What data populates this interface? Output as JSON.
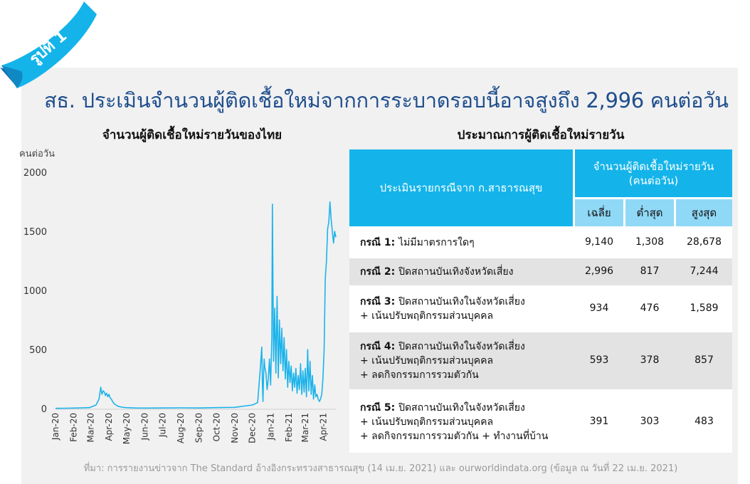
{
  "badge": {
    "label": "รูปที่ 1"
  },
  "header": {
    "title": "สธ. ประเมินจำนวนผู้ติดเชื้อใหม่จากการระบาดรอบนี้อาจสูงถึง 2,996 คนต่อวัน"
  },
  "colors": {
    "title": "#1f4e8c",
    "accent": "#14b4ea",
    "line": "#1cb3ea",
    "ribbon_dark": "#0d6aa8"
  },
  "chart_data": {
    "type": "line",
    "title": "จำนวนผู้ติดเชื้อใหม่รายวันของไทย",
    "ylabel": "คนต่อวัน",
    "ylim": [
      0,
      2000
    ],
    "yticks": [
      0,
      500,
      1000,
      1500,
      2000
    ],
    "xlabels": [
      "Jan-20",
      "Feb-20",
      "Mar-20",
      "Apr-20",
      "May-20",
      "Jun-20",
      "Jul-20",
      "Aug-20",
      "Sep-20",
      "Oct-20",
      "Nov-20",
      "Dec-20",
      "Jan-21",
      "Feb-21",
      "Mar-21",
      "Apr-21"
    ],
    "grid": false,
    "series": [
      {
        "x": [
          "2020-01-01",
          "2020-01-20",
          "2020-02-10",
          "2020-02-28",
          "2020-03-10",
          "2020-03-15",
          "2020-03-18",
          "2020-03-20",
          "2020-03-22",
          "2020-03-24",
          "2020-03-26",
          "2020-03-28",
          "2020-03-30",
          "2020-04-01",
          "2020-04-03",
          "2020-04-05",
          "2020-04-07",
          "2020-04-10",
          "2020-04-13",
          "2020-04-16",
          "2020-04-20",
          "2020-04-25",
          "2020-05-01",
          "2020-05-15",
          "2020-06-01",
          "2020-07-01",
          "2020-08-01",
          "2020-09-01",
          "2020-10-01",
          "2020-11-01",
          "2020-12-01",
          "2020-12-10",
          "2020-12-15",
          "2020-12-17",
          "2020-12-18",
          "2020-12-19",
          "2020-12-20",
          "2020-12-21",
          "2020-12-22",
          "2020-12-24",
          "2020-12-26",
          "2020-12-28",
          "2020-12-30",
          "2021-01-01",
          "2021-01-03",
          "2021-01-04",
          "2021-01-06",
          "2021-01-08",
          "2021-01-10",
          "2021-01-12",
          "2021-01-14",
          "2021-01-16",
          "2021-01-18",
          "2021-01-20",
          "2021-01-22",
          "2021-01-24",
          "2021-01-26",
          "2021-01-28",
          "2021-01-30",
          "2021-02-01",
          "2021-02-03",
          "2021-02-05",
          "2021-02-07",
          "2021-02-09",
          "2021-02-11",
          "2021-02-13",
          "2021-02-15",
          "2021-02-17",
          "2021-02-19",
          "2021-02-21",
          "2021-02-23",
          "2021-02-25",
          "2021-02-27",
          "2021-03-01",
          "2021-03-03",
          "2021-03-05",
          "2021-03-07",
          "2021-03-09",
          "2021-03-11",
          "2021-03-13",
          "2021-03-15",
          "2021-03-17",
          "2021-03-19",
          "2021-03-21",
          "2021-03-23",
          "2021-03-25",
          "2021-03-27",
          "2021-03-29",
          "2021-03-31",
          "2021-04-02",
          "2021-04-04",
          "2021-04-06",
          "2021-04-08",
          "2021-04-10",
          "2021-04-12",
          "2021-04-14",
          "2021-04-16",
          "2021-04-18",
          "2021-04-20",
          "2021-04-22"
        ],
        "y": [
          2,
          3,
          5,
          8,
          30,
          80,
          180,
          120,
          150,
          140,
          110,
          130,
          100,
          120,
          90,
          80,
          60,
          40,
          30,
          20,
          15,
          10,
          8,
          5,
          4,
          5,
          6,
          5,
          8,
          10,
          30,
          50,
          380,
          520,
          200,
          60,
          280,
          420,
          350,
          300,
          160,
          250,
          420,
          200,
          600,
          1730,
          400,
          850,
          300,
          950,
          260,
          750,
          380,
          680,
          320,
          600,
          250,
          500,
          180,
          400,
          220,
          360,
          150,
          300,
          180,
          340,
          130,
          280,
          160,
          380,
          120,
          320,
          140,
          340,
          100,
          500,
          150,
          400,
          120,
          280,
          80,
          200,
          100,
          120,
          80,
          60,
          80,
          120,
          250,
          500,
          1100,
          1250,
          1520,
          1580,
          1750,
          1600,
          1500,
          1400,
          1500,
          1450
        ],
        "color": "#1cb3ea"
      }
    ]
  },
  "table": {
    "title": "ประมาณการผู้ติดเชื้อใหม่รายวัน",
    "header_left": "ประเมินรายกรณีจาก ก.สาธารณสุข",
    "header_right": "จำนวนผู้ติดเชื้อใหม่รายวัน (คนต่อวัน)",
    "columns": [
      "เฉลี่ย",
      "ต่ำสุด",
      "สูงสุด"
    ],
    "rows": [
      {
        "case": "กรณี 1:",
        "desc": [
          "ไม่มีมาตรการใดๆ"
        ],
        "avg": "9,140",
        "min": "1,308",
        "max": "28,678"
      },
      {
        "case": "กรณี 2:",
        "desc": [
          "ปิดสถานบันเทิงจังหวัดเสี่ยง"
        ],
        "avg": "2,996",
        "min": "817",
        "max": "7,244"
      },
      {
        "case": "กรณี 3:",
        "desc": [
          "ปิดสถานบันเทิงในจังหวัดเสี่ยง",
          "+ เน้นปรับพฤติกรรมส่วนบุคคล"
        ],
        "avg": "934",
        "min": "476",
        "max": "1,589"
      },
      {
        "case": "กรณี 4:",
        "desc": [
          "ปิดสถานบันเทิงในจังหวัดเสี่ยง",
          "+ เน้นปรับพฤติกรรมส่วนบุคคล",
          "+ ลดกิจกรรมการรวมตัวกัน"
        ],
        "avg": "593",
        "min": "378",
        "max": "857"
      },
      {
        "case": "กรณี 5:",
        "desc": [
          "ปิดสถานบันเทิงในจังหวัดเสี่ยง",
          "+ เน้นปรับพฤติกรรมส่วนบุคคล",
          "+ ลดกิจกรรมการรวมตัวกัน + ทำงานที่บ้าน"
        ],
        "avg": "391",
        "min": "303",
        "max": "483"
      }
    ]
  },
  "footer": {
    "source": "ที่มา: การรายงานข่าวจาก The Standard อ้างอิงกระทรวงสาธารณสุข (14 เม.ย. 2021) และ ourworldindata.org (ข้อมูล ณ วันที่ 22 เม.ย. 2021)"
  }
}
